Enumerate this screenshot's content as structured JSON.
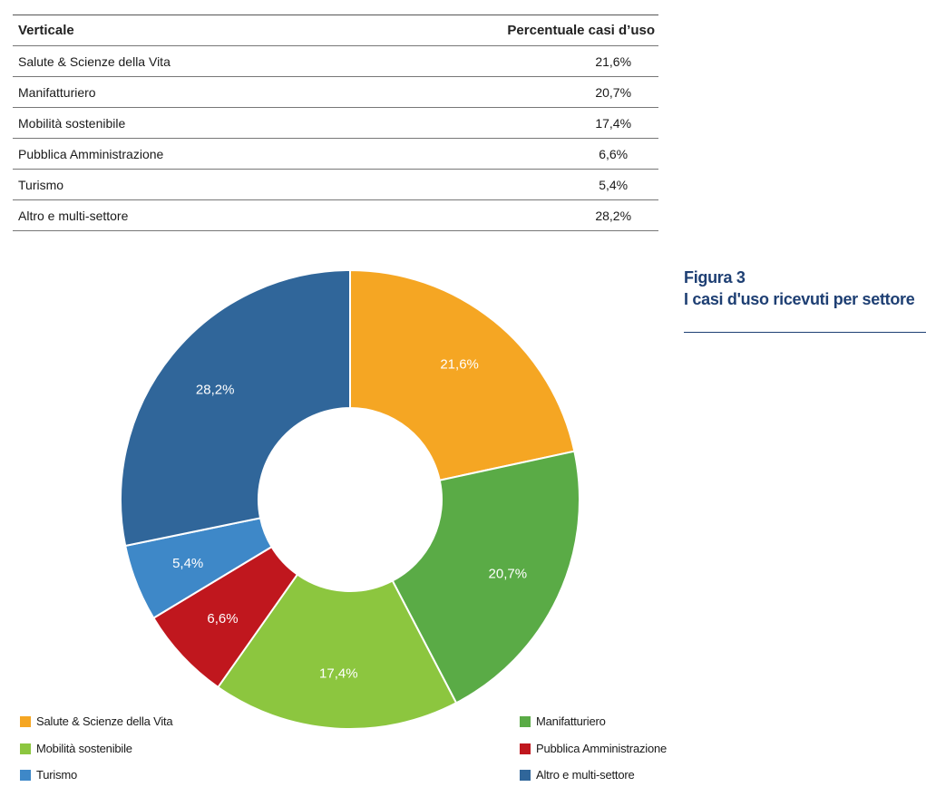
{
  "table": {
    "header": {
      "col1": "Verticale",
      "col2": "Percentuale casi d’uso"
    },
    "rows": [
      {
        "label": "Salute & Scienze della Vita",
        "value": "21,6%"
      },
      {
        "label": "Manifatturiero",
        "value": "20,7%"
      },
      {
        "label": "Mobilità sostenibile",
        "value": "17,4%"
      },
      {
        "label": "Pubblica Amministrazione",
        "value": "6,6%"
      },
      {
        "label": "Turismo",
        "value": "5,4%"
      },
      {
        "label": "Altro e multi-settore",
        "value": "28,2%"
      }
    ]
  },
  "figure": {
    "number": "Figura 3",
    "title": "I casi d'uso ricevuti per settore"
  },
  "chart_data": {
    "type": "pie",
    "variant": "donut",
    "title": "I casi d'uso ricevuti per settore",
    "categories": [
      "Salute & Scienze della Vita",
      "Manifatturiero",
      "Mobilità sostenibile",
      "Pubblica Amministrazione",
      "Turismo",
      "Altro e multi-settore"
    ],
    "values": [
      21.6,
      20.7,
      17.4,
      6.6,
      5.4,
      28.2
    ],
    "data_labels": [
      "21,6%",
      "20,7%",
      "17,4%",
      "6,6%",
      "5,4%",
      "28,2%"
    ],
    "colors": [
      "#f5a623",
      "#5aab46",
      "#8cc63f",
      "#c0171e",
      "#3e88c8",
      "#30669a"
    ],
    "label_color": "#ffffff",
    "legend_position": "bottom",
    "legend": [
      {
        "label": "Salute & Scienze della Vita",
        "color": "#f5a623"
      },
      {
        "label": "Manifatturiero",
        "color": "#5aab46"
      },
      {
        "label": "Mobilità sostenibile",
        "color": "#8cc63f"
      },
      {
        "label": "Pubblica Amministrazione",
        "color": "#c0171e"
      },
      {
        "label": "Turismo",
        "color": "#3e88c8"
      },
      {
        "label": "Altro e multi-settore",
        "color": "#30669a"
      }
    ]
  }
}
